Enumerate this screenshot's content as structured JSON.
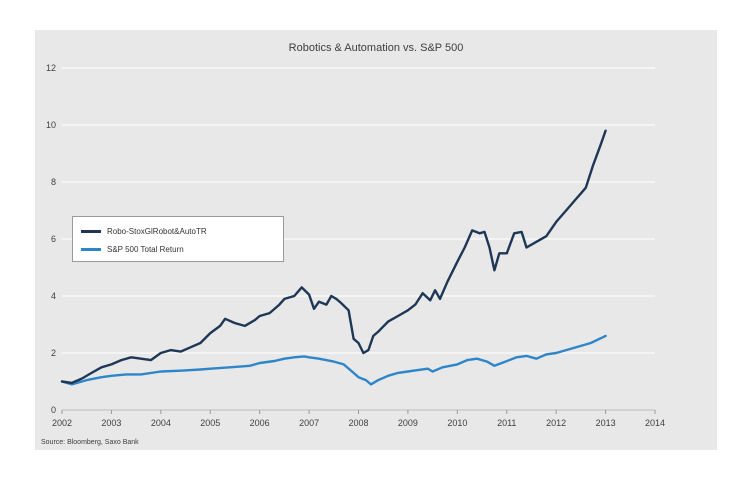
{
  "chart_data": {
    "type": "line",
    "title": "Robotics & Automation  vs. S&P 500",
    "source": "Source: Bloomberg, Saxo Bank",
    "xlim": [
      2002,
      2014
    ],
    "ylim": [
      0,
      12
    ],
    "x_ticks": [
      "2002",
      "2003",
      "2004",
      "2005",
      "2006",
      "2007",
      "2008",
      "2009",
      "2010",
      "2011",
      "2012",
      "2013",
      "2014"
    ],
    "y_ticks": [
      "0",
      "2",
      "4",
      "6",
      "8",
      "10",
      "12"
    ],
    "grid": true,
    "legend_position": "left",
    "colors": {
      "background": "#e8e8e8",
      "grid": "#ffffff",
      "robo": "#1f3756",
      "sp500": "#2e86c9"
    },
    "series": [
      {
        "name": "Robo-StoxGlRobot&AutoTR",
        "points": [
          [
            2002.0,
            1.0
          ],
          [
            2002.2,
            0.95
          ],
          [
            2002.4,
            1.1
          ],
          [
            2002.6,
            1.3
          ],
          [
            2002.8,
            1.5
          ],
          [
            2003.0,
            1.6
          ],
          [
            2003.2,
            1.75
          ],
          [
            2003.4,
            1.85
          ],
          [
            2003.6,
            1.8
          ],
          [
            2003.8,
            1.75
          ],
          [
            2004.0,
            2.0
          ],
          [
            2004.2,
            2.1
          ],
          [
            2004.4,
            2.05
          ],
          [
            2004.6,
            2.2
          ],
          [
            2004.8,
            2.35
          ],
          [
            2005.0,
            2.7
          ],
          [
            2005.2,
            2.95
          ],
          [
            2005.3,
            3.2
          ],
          [
            2005.5,
            3.05
          ],
          [
            2005.7,
            2.95
          ],
          [
            2005.9,
            3.15
          ],
          [
            2006.0,
            3.3
          ],
          [
            2006.2,
            3.4
          ],
          [
            2006.4,
            3.7
          ],
          [
            2006.5,
            3.9
          ],
          [
            2006.7,
            4.0
          ],
          [
            2006.8,
            4.2
          ],
          [
            2006.85,
            4.3
          ],
          [
            2007.0,
            4.05
          ],
          [
            2007.1,
            3.55
          ],
          [
            2007.2,
            3.8
          ],
          [
            2007.35,
            3.7
          ],
          [
            2007.45,
            4.0
          ],
          [
            2007.55,
            3.9
          ],
          [
            2007.65,
            3.75
          ],
          [
            2007.8,
            3.5
          ],
          [
            2007.9,
            2.5
          ],
          [
            2008.0,
            2.35
          ],
          [
            2008.1,
            2.0
          ],
          [
            2008.2,
            2.1
          ],
          [
            2008.3,
            2.6
          ],
          [
            2008.4,
            2.75
          ],
          [
            2008.6,
            3.1
          ],
          [
            2008.8,
            3.3
          ],
          [
            2009.0,
            3.5
          ],
          [
            2009.15,
            3.7
          ],
          [
            2009.3,
            4.1
          ],
          [
            2009.45,
            3.85
          ],
          [
            2009.55,
            4.2
          ],
          [
            2009.65,
            3.9
          ],
          [
            2009.8,
            4.5
          ],
          [
            2010.0,
            5.2
          ],
          [
            2010.15,
            5.7
          ],
          [
            2010.3,
            6.3
          ],
          [
            2010.45,
            6.2
          ],
          [
            2010.55,
            6.25
          ],
          [
            2010.65,
            5.7
          ],
          [
            2010.75,
            4.9
          ],
          [
            2010.85,
            5.5
          ],
          [
            2011.0,
            5.5
          ],
          [
            2011.15,
            6.2
          ],
          [
            2011.3,
            6.25
          ],
          [
            2011.4,
            5.7
          ],
          [
            2011.6,
            5.9
          ],
          [
            2011.8,
            6.1
          ],
          [
            2012.0,
            6.6
          ],
          [
            2012.2,
            7.0
          ],
          [
            2012.4,
            7.4
          ],
          [
            2012.5,
            7.6
          ],
          [
            2012.6,
            7.8
          ],
          [
            2012.75,
            8.6
          ],
          [
            2012.9,
            9.3
          ],
          [
            2013.0,
            9.8
          ]
        ]
      },
      {
        "name": "S&P 500 Total Return",
        "points": [
          [
            2002.0,
            1.0
          ],
          [
            2002.2,
            0.9
          ],
          [
            2002.5,
            1.05
          ],
          [
            2002.8,
            1.15
          ],
          [
            2003.0,
            1.2
          ],
          [
            2003.3,
            1.25
          ],
          [
            2003.6,
            1.25
          ],
          [
            2004.0,
            1.35
          ],
          [
            2004.4,
            1.38
          ],
          [
            2004.8,
            1.42
          ],
          [
            2005.0,
            1.45
          ],
          [
            2005.4,
            1.5
          ],
          [
            2005.8,
            1.55
          ],
          [
            2006.0,
            1.65
          ],
          [
            2006.3,
            1.72
          ],
          [
            2006.5,
            1.8
          ],
          [
            2006.7,
            1.85
          ],
          [
            2006.9,
            1.88
          ],
          [
            2007.0,
            1.85
          ],
          [
            2007.2,
            1.8
          ],
          [
            2007.5,
            1.7
          ],
          [
            2007.7,
            1.6
          ],
          [
            2007.9,
            1.3
          ],
          [
            2008.0,
            1.15
          ],
          [
            2008.15,
            1.05
          ],
          [
            2008.25,
            0.9
          ],
          [
            2008.4,
            1.05
          ],
          [
            2008.6,
            1.2
          ],
          [
            2008.8,
            1.3
          ],
          [
            2009.0,
            1.35
          ],
          [
            2009.2,
            1.4
          ],
          [
            2009.4,
            1.45
          ],
          [
            2009.5,
            1.35
          ],
          [
            2009.7,
            1.5
          ],
          [
            2010.0,
            1.6
          ],
          [
            2010.2,
            1.75
          ],
          [
            2010.4,
            1.8
          ],
          [
            2010.6,
            1.7
          ],
          [
            2010.75,
            1.55
          ],
          [
            2010.9,
            1.65
          ],
          [
            2011.2,
            1.85
          ],
          [
            2011.4,
            1.9
          ],
          [
            2011.6,
            1.8
          ],
          [
            2011.8,
            1.95
          ],
          [
            2012.0,
            2.0
          ],
          [
            2012.2,
            2.1
          ],
          [
            2012.5,
            2.25
          ],
          [
            2012.7,
            2.35
          ],
          [
            2013.0,
            2.6
          ]
        ]
      }
    ]
  }
}
